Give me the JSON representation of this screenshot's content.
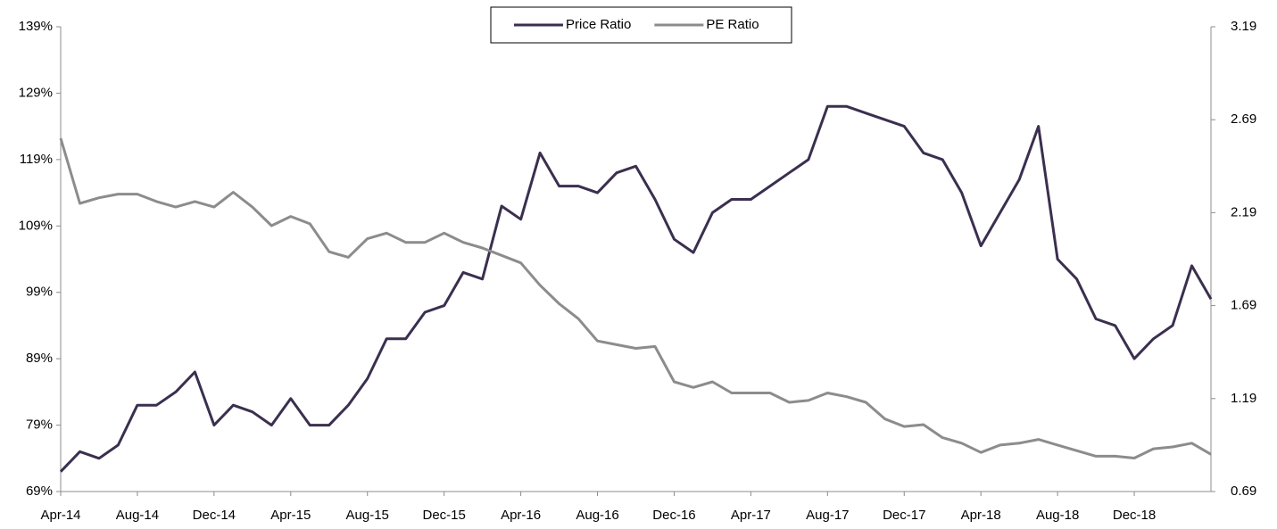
{
  "chart_data": {
    "type": "line",
    "categories": [
      "Apr-14",
      null,
      null,
      null,
      "Aug-14",
      null,
      null,
      null,
      "Dec-14",
      null,
      null,
      null,
      "Apr-15",
      null,
      null,
      null,
      "Aug-15",
      null,
      null,
      null,
      "Dec-15",
      null,
      null,
      null,
      "Apr-16",
      null,
      null,
      null,
      "Aug-16",
      null,
      null,
      null,
      "Dec-16",
      null,
      null,
      null,
      "Apr-17",
      null,
      null,
      null,
      "Aug-17",
      null,
      null,
      null,
      "Dec-17",
      null,
      null,
      null,
      "Apr-18",
      null,
      null,
      null,
      "Aug-18",
      null,
      null,
      null,
      "Dec-18",
      null,
      null,
      null,
      null
    ],
    "series": [
      {
        "name": "Price Ratio",
        "color": "#3b2f4f",
        "axis": "y",
        "values": [
          72,
          75,
          74,
          76,
          82,
          82,
          84,
          87,
          79,
          82,
          81,
          79,
          83,
          79,
          79,
          82,
          86,
          92,
          92,
          96,
          97,
          102,
          101,
          112,
          110,
          120,
          115,
          115,
          114,
          117,
          118,
          113,
          107,
          105,
          111,
          113,
          113,
          115,
          117,
          119,
          127,
          127,
          126,
          125,
          124,
          120,
          119,
          114,
          106,
          111,
          116,
          124,
          104,
          101,
          95,
          94,
          89,
          92,
          94,
          103,
          98
        ]
      },
      {
        "name": "PE Ratio",
        "color": "#8c8c8c",
        "axis": "y2",
        "values": [
          2.59,
          2.24,
          2.27,
          2.29,
          2.29,
          2.25,
          2.22,
          2.25,
          2.22,
          2.3,
          2.22,
          2.12,
          2.17,
          2.13,
          1.98,
          1.95,
          2.05,
          2.08,
          2.03,
          2.03,
          2.08,
          2.03,
          2.0,
          1.96,
          1.92,
          1.8,
          1.7,
          1.62,
          1.5,
          1.48,
          1.46,
          1.47,
          1.28,
          1.25,
          1.28,
          1.22,
          1.22,
          1.22,
          1.17,
          1.18,
          1.22,
          1.2,
          1.17,
          1.08,
          1.04,
          1.05,
          0.98,
          0.95,
          0.9,
          0.94,
          0.95,
          0.97,
          0.94,
          0.91,
          0.88,
          0.88,
          0.87,
          0.92,
          0.93,
          0.95,
          0.89
        ]
      }
    ],
    "ylim": [
      69,
      139
    ],
    "yticks": [
      {
        "value": 69,
        "label": "69%"
      },
      {
        "value": 79,
        "label": "79%"
      },
      {
        "value": 89,
        "label": "89%"
      },
      {
        "value": 99,
        "label": "99%"
      },
      {
        "value": 109,
        "label": "109%"
      },
      {
        "value": 119,
        "label": "119%"
      },
      {
        "value": 129,
        "label": "129%"
      },
      {
        "value": 139,
        "label": "139%"
      }
    ],
    "y2lim": [
      0.69,
      3.19
    ],
    "y2ticks": [
      0.69,
      1.19,
      1.69,
      2.19,
      2.69,
      3.19
    ],
    "grid": false,
    "legend": "top"
  }
}
